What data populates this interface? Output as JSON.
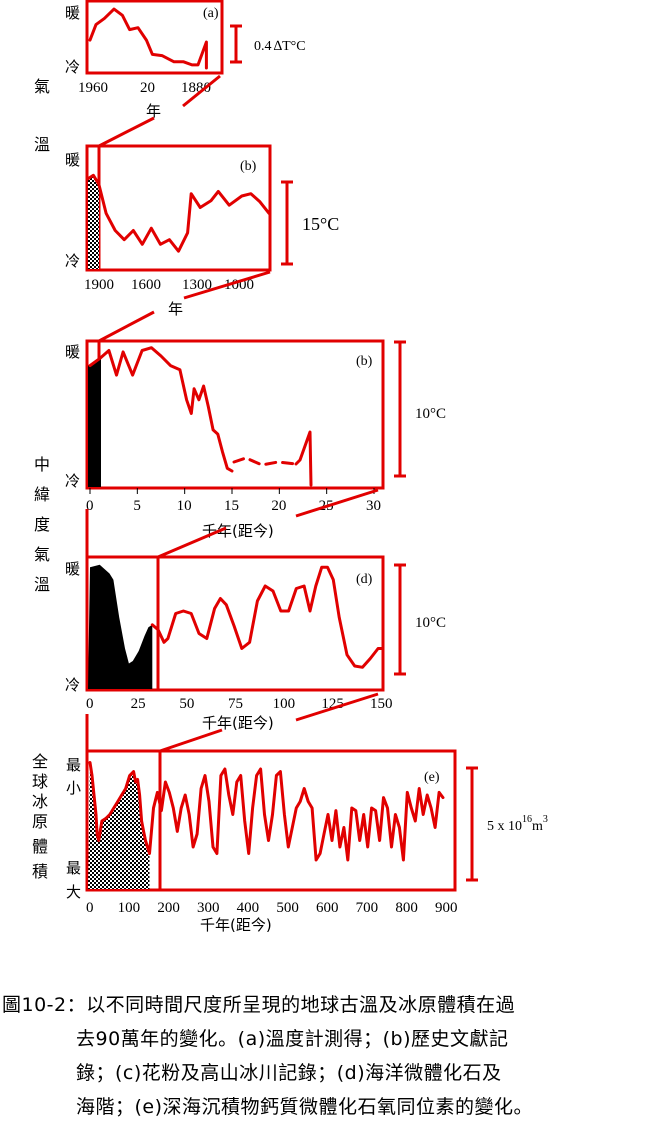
{
  "side_labels": {
    "air_temp_1": "氣",
    "air_temp_2": "溫",
    "midlat_1": "中",
    "midlat_2": "緯",
    "midlat_3": "度",
    "midlat_4": "氣",
    "midlat_5": "溫",
    "ice_1": "全",
    "ice_2": "球",
    "ice_3": "冰",
    "ice_4": "原",
    "ice_5": "體",
    "ice_6": "積"
  },
  "chart_data": [
    {
      "id": "a",
      "type": "line",
      "panel_label": "(a)",
      "y_top_label": "暖",
      "y_bottom_label": "冷",
      "x_ticks": [
        "1960",
        "20",
        "1880"
      ],
      "xlabel": "年",
      "scale_label_main": "0.4",
      "scale_label_delta": "∆",
      "scale_label_unit": "T°C",
      "note": "x axis runs from present (left) back to 1880 (right)",
      "series": [
        {
          "values": [
            [
              0,
              0.45
            ],
            [
              0.05,
              0.7
            ],
            [
              0.12,
              0.8
            ],
            [
              0.2,
              0.95
            ],
            [
              0.27,
              0.85
            ],
            [
              0.33,
              0.62
            ],
            [
              0.4,
              0.65
            ],
            [
              0.47,
              0.45
            ],
            [
              0.52,
              0.22
            ],
            [
              0.6,
              0.2
            ],
            [
              0.7,
              0.1
            ],
            [
              0.78,
              0.1
            ],
            [
              0.85,
              0.05
            ],
            [
              0.9,
              0.05
            ],
            [
              0.97,
              0.42
            ],
            [
              0.97,
              0.0
            ]
          ]
        }
      ]
    },
    {
      "id": "b1",
      "type": "line",
      "panel_label": "(b)",
      "y_top_label": "暖",
      "y_bottom_label": "冷",
      "x_ticks": [
        "1900",
        "1600",
        "1300",
        "1000"
      ],
      "xlabel": "年",
      "scale_label": "15°C",
      "series": [
        {
          "values": [
            [
              0,
              0.75
            ],
            [
              0.03,
              0.78
            ],
            [
              0.06,
              0.7
            ],
            [
              0.1,
              0.45
            ],
            [
              0.15,
              0.3
            ],
            [
              0.2,
              0.22
            ],
            [
              0.25,
              0.3
            ],
            [
              0.3,
              0.18
            ],
            [
              0.35,
              0.32
            ],
            [
              0.4,
              0.18
            ],
            [
              0.45,
              0.22
            ],
            [
              0.5,
              0.12
            ],
            [
              0.55,
              0.28
            ],
            [
              0.57,
              0.62
            ],
            [
              0.62,
              0.5
            ],
            [
              0.68,
              0.56
            ],
            [
              0.72,
              0.64
            ],
            [
              0.78,
              0.52
            ],
            [
              0.85,
              0.6
            ],
            [
              0.9,
              0.62
            ],
            [
              0.95,
              0.55
            ],
            [
              1.0,
              0.45
            ]
          ]
        }
      ]
    },
    {
      "id": "b2",
      "type": "line",
      "panel_label": "(b)",
      "y_top_label": "暖",
      "y_bottom_label": "冷",
      "x_ticks": [
        "0",
        "5",
        "10",
        "15",
        "20",
        "25",
        "30"
      ],
      "x_tick_values": [
        0,
        5,
        10,
        15,
        20,
        25,
        30
      ],
      "xlabel": "千年(距今)",
      "scale_label": "10°C",
      "series": [
        {
          "values": [
            [
              0,
              0.85
            ],
            [
              1,
              0.9
            ],
            [
              2,
              0.96
            ],
            [
              2.8,
              0.78
            ],
            [
              3.5,
              0.95
            ],
            [
              4.5,
              0.78
            ],
            [
              5.5,
              0.96
            ],
            [
              6.5,
              0.98
            ],
            [
              7.5,
              0.92
            ],
            [
              8.5,
              0.85
            ],
            [
              9.5,
              0.82
            ],
            [
              10.2,
              0.6
            ],
            [
              10.7,
              0.5
            ],
            [
              11,
              0.68
            ],
            [
              11.5,
              0.6
            ],
            [
              12,
              0.7
            ],
            [
              12.5,
              0.55
            ],
            [
              13,
              0.38
            ],
            [
              13.5,
              0.35
            ],
            [
              14,
              0.22
            ],
            [
              14.5,
              0.1
            ],
            [
              15,
              0.08
            ]
          ]
        }
      ]
    },
    {
      "id": "d",
      "type": "line",
      "panel_label": "(d)",
      "y_top_label": "暖",
      "y_bottom_label": "冷",
      "x_ticks": [
        "0",
        "25",
        "50",
        "75",
        "100",
        "125",
        "150"
      ],
      "x_tick_values": [
        0,
        25,
        50,
        75,
        100,
        125,
        150
      ],
      "xlabel": "千年(距今)",
      "scale_label": "10°C",
      "series": [
        {
          "values": [
            [
              0,
              0.95
            ],
            [
              5,
              0.97
            ],
            [
              10,
              0.9
            ],
            [
              12,
              0.85
            ],
            [
              15,
              0.55
            ],
            [
              18,
              0.3
            ],
            [
              20,
              0.18
            ],
            [
              22,
              0.2
            ],
            [
              25,
              0.28
            ],
            [
              28,
              0.4
            ],
            [
              30,
              0.47
            ],
            [
              32,
              0.49
            ],
            [
              35,
              0.45
            ],
            [
              38,
              0.35
            ],
            [
              40,
              0.38
            ],
            [
              44,
              0.58
            ],
            [
              48,
              0.6
            ],
            [
              52,
              0.58
            ],
            [
              56,
              0.42
            ],
            [
              60,
              0.38
            ],
            [
              64,
              0.62
            ],
            [
              67,
              0.7
            ],
            [
              70,
              0.65
            ],
            [
              74,
              0.48
            ],
            [
              78,
              0.3
            ],
            [
              82,
              0.35
            ],
            [
              86,
              0.68
            ],
            [
              90,
              0.8
            ],
            [
              94,
              0.76
            ],
            [
              98,
              0.6
            ],
            [
              102,
              0.6
            ],
            [
              106,
              0.78
            ],
            [
              110,
              0.8
            ],
            [
              113,
              0.6
            ],
            [
              116,
              0.8
            ],
            [
              119,
              0.95
            ],
            [
              122,
              0.95
            ],
            [
              125,
              0.85
            ],
            [
              128,
              0.55
            ],
            [
              132,
              0.25
            ],
            [
              136,
              0.16
            ],
            [
              140,
              0.15
            ],
            [
              144,
              0.22
            ],
            [
              148,
              0.3
            ],
            [
              150,
              0.3
            ]
          ]
        }
      ]
    },
    {
      "id": "e",
      "type": "line",
      "panel_label": "(e)",
      "y_top_label": "最小",
      "y_bottom_label": "最大",
      "x_ticks": [
        "0",
        "100",
        "200",
        "300",
        "400",
        "500",
        "600",
        "700",
        "800",
        "900"
      ],
      "x_tick_values": [
        0,
        100,
        200,
        300,
        400,
        500,
        600,
        700,
        800,
        900
      ],
      "xlabel": "千年(距今)",
      "scale_label_main": "5 x 10",
      "scale_label_exp": "16",
      "scale_label_unit": "m",
      "scale_label_unit_exp": "3",
      "note": "y is ice volume fraction: 1 = minimum ice, 0 = maximum ice",
      "series": [
        {
          "values": [
            [
              0,
              0.95
            ],
            [
              5,
              0.85
            ],
            [
              10,
              0.7
            ],
            [
              15,
              0.55
            ],
            [
              18,
              0.4
            ],
            [
              22,
              0.35
            ],
            [
              30,
              0.5
            ],
            [
              40,
              0.52
            ],
            [
              50,
              0.55
            ],
            [
              60,
              0.6
            ],
            [
              70,
              0.65
            ],
            [
              80,
              0.7
            ],
            [
              90,
              0.75
            ],
            [
              100,
              0.85
            ],
            [
              110,
              0.88
            ],
            [
              115,
              0.8
            ],
            [
              120,
              0.82
            ],
            [
              125,
              0.7
            ],
            [
              130,
              0.5
            ],
            [
              135,
              0.42
            ],
            [
              140,
              0.35
            ],
            [
              150,
              0.25
            ],
            [
              160,
              0.6
            ],
            [
              170,
              0.72
            ],
            [
              180,
              0.58
            ],
            [
              190,
              0.8
            ],
            [
              200,
              0.72
            ],
            [
              210,
              0.6
            ],
            [
              220,
              0.42
            ],
            [
              230,
              0.6
            ],
            [
              240,
              0.7
            ],
            [
              250,
              0.55
            ],
            [
              260,
              0.3
            ],
            [
              270,
              0.4
            ],
            [
              280,
              0.75
            ],
            [
              290,
              0.85
            ],
            [
              300,
              0.65
            ],
            [
              310,
              0.3
            ],
            [
              320,
              0.25
            ],
            [
              330,
              0.85
            ],
            [
              340,
              0.9
            ],
            [
              350,
              0.7
            ],
            [
              360,
              0.55
            ],
            [
              370,
              0.8
            ],
            [
              380,
              0.85
            ],
            [
              390,
              0.5
            ],
            [
              400,
              0.25
            ],
            [
              410,
              0.6
            ],
            [
              420,
              0.85
            ],
            [
              430,
              0.9
            ],
            [
              440,
              0.55
            ],
            [
              450,
              0.35
            ],
            [
              460,
              0.55
            ],
            [
              470,
              0.85
            ],
            [
              480,
              0.88
            ],
            [
              490,
              0.55
            ],
            [
              500,
              0.3
            ],
            [
              510,
              0.45
            ],
            [
              520,
              0.6
            ],
            [
              530,
              0.65
            ],
            [
              540,
              0.75
            ],
            [
              550,
              0.65
            ],
            [
              560,
              0.6
            ],
            [
              570,
              0.2
            ],
            [
              580,
              0.25
            ],
            [
              590,
              0.4
            ],
            [
              600,
              0.55
            ],
            [
              610,
              0.35
            ],
            [
              620,
              0.58
            ],
            [
              630,
              0.3
            ],
            [
              640,
              0.45
            ],
            [
              650,
              0.2
            ],
            [
              660,
              0.6
            ],
            [
              670,
              0.58
            ],
            [
              680,
              0.35
            ],
            [
              690,
              0.55
            ],
            [
              700,
              0.3
            ],
            [
              710,
              0.6
            ],
            [
              720,
              0.58
            ],
            [
              730,
              0.35
            ],
            [
              740,
              0.68
            ],
            [
              750,
              0.6
            ],
            [
              760,
              0.3
            ],
            [
              770,
              0.55
            ],
            [
              780,
              0.45
            ],
            [
              790,
              0.2
            ],
            [
              800,
              0.72
            ],
            [
              810,
              0.6
            ],
            [
              820,
              0.5
            ],
            [
              830,
              0.75
            ],
            [
              840,
              0.55
            ],
            [
              850,
              0.7
            ],
            [
              860,
              0.6
            ],
            [
              870,
              0.45
            ],
            [
              880,
              0.72
            ],
            [
              890,
              0.68
            ]
          ]
        }
      ]
    }
  ],
  "caption": {
    "line1": "圖10-2：以不同時間尺度所呈現的地球古溫及冰原體積在過",
    "line2": "去90萬年的變化。(a)溫度計測得；(b)歷史文獻記",
    "line3": "錄；(c)花粉及高山冰川記錄；(d)海洋微體化石及",
    "line4": "海階；(e)深海沉積物鈣質微體化石氧同位素的變化。"
  }
}
